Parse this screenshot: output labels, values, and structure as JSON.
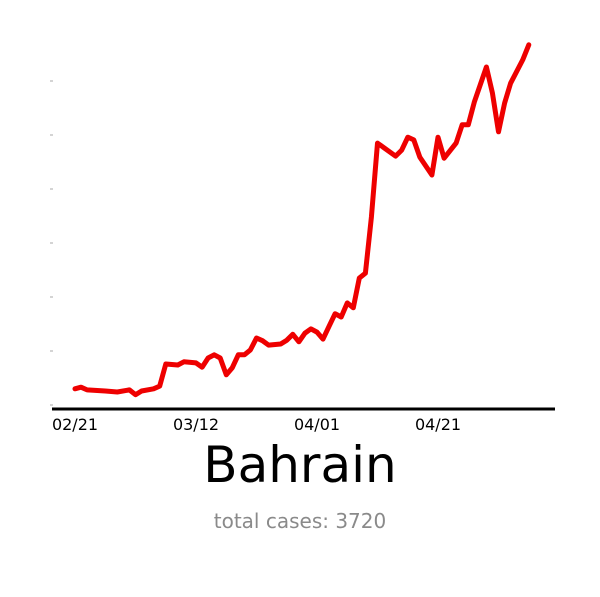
{
  "chart_data": {
    "type": "line",
    "title": "Bahrain",
    "subtitle": "total cases: 3720",
    "xlabel": "",
    "ylabel": "",
    "x_tick_labels": [
      "02/21",
      "03/12",
      "04/01",
      "04/21"
    ],
    "y_tick_labels": [],
    "y_scale_note_units": "unlabeled",
    "ylim": [
      0,
      6.8
    ],
    "grid": false,
    "line_color": "#ee0000",
    "series": [
      {
        "x": [
          "02/21",
          "02/22",
          "02/23",
          "02/26",
          "02/28",
          "03/01",
          "03/02",
          "03/03",
          "03/05",
          "03/06",
          "03/07",
          "03/09",
          "03/10",
          "03/12",
          "03/13",
          "03/14",
          "03/15",
          "03/16",
          "03/17",
          "03/18",
          "03/19",
          "03/20",
          "03/21",
          "03/22",
          "03/23",
          "03/24",
          "03/26",
          "03/27",
          "03/28",
          "03/29",
          "03/30",
          "03/31",
          "04/01",
          "04/02",
          "04/03",
          "04/04",
          "04/05",
          "04/06",
          "04/07",
          "04/08",
          "04/09",
          "04/10",
          "04/11",
          "04/14",
          "04/15",
          "04/16",
          "04/17",
          "04/18",
          "04/20",
          "04/21",
          "04/22",
          "04/24",
          "04/25",
          "04/26",
          "04/27",
          "04/29",
          "04/30",
          "05/01",
          "05/02",
          "05/03",
          "05/05",
          "05/06"
        ],
        "y": [
          0.3,
          0.33,
          0.28,
          0.26,
          0.24,
          0.28,
          0.19,
          0.26,
          0.3,
          0.35,
          0.76,
          0.74,
          0.8,
          0.78,
          0.7,
          0.87,
          0.93,
          0.87,
          0.56,
          0.69,
          0.93,
          0.93,
          1.02,
          1.24,
          1.19,
          1.11,
          1.13,
          1.2,
          1.31,
          1.17,
          1.33,
          1.41,
          1.35,
          1.22,
          1.46,
          1.69,
          1.63,
          1.89,
          1.8,
          2.35,
          2.44,
          3.48,
          4.85,
          4.61,
          4.72,
          4.96,
          4.91,
          4.59,
          4.26,
          4.96,
          4.57,
          4.85,
          5.19,
          5.19,
          5.61,
          6.26,
          5.78,
          5.06,
          5.59,
          5.96,
          6.39,
          6.67
        ]
      }
    ]
  }
}
